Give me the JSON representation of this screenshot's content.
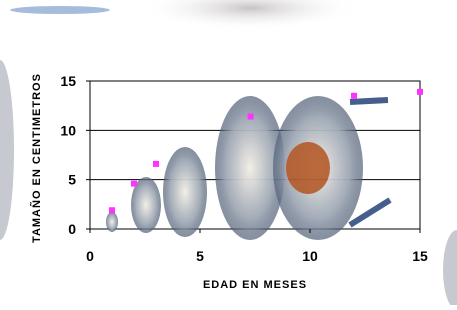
{
  "chart_data": {
    "type": "scatter",
    "x_label": "EDAD EN MESES",
    "y_label": "TAMAÑO EN CENTIMETROS",
    "series": [
      {
        "color": "#ff33ff",
        "x": [
          1,
          2,
          3,
          7.3,
          12,
          15
        ],
        "values": [
          1.9,
          4.6,
          6.6,
          11.4,
          13.5,
          13.9
        ]
      }
    ],
    "xlim": [
      0,
      15
    ],
    "xticks": [
      0,
      5,
      10,
      15
    ],
    "ylim": [
      0,
      15
    ],
    "yticks": [
      0,
      5,
      10,
      15
    ],
    "grid": true
  }
}
